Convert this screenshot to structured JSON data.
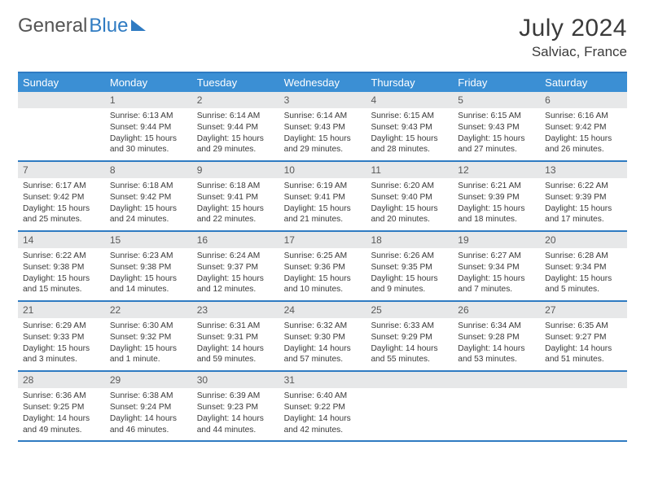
{
  "logo": {
    "text1": "General",
    "text2": "Blue"
  },
  "header": {
    "month": "July 2024",
    "location": "Salviac, France"
  },
  "styling": {
    "accent_color": "#3b8fd4",
    "border_color": "#2f7bc2",
    "daynum_bg": "#e7e8e9",
    "background": "#ffffff",
    "text_color": "#3a3a3a",
    "font_family": "Arial",
    "month_fontsize": 30,
    "location_fontsize": 17,
    "header_fontsize": 13,
    "body_fontsize": 10.2
  },
  "weekdays": [
    "Sunday",
    "Monday",
    "Tuesday",
    "Wednesday",
    "Thursday",
    "Friday",
    "Saturday"
  ],
  "weeks": [
    [
      {
        "n": "",
        "lines": []
      },
      {
        "n": "1",
        "lines": [
          "Sunrise: 6:13 AM",
          "Sunset: 9:44 PM",
          "Daylight: 15 hours and 30 minutes."
        ]
      },
      {
        "n": "2",
        "lines": [
          "Sunrise: 6:14 AM",
          "Sunset: 9:44 PM",
          "Daylight: 15 hours and 29 minutes."
        ]
      },
      {
        "n": "3",
        "lines": [
          "Sunrise: 6:14 AM",
          "Sunset: 9:43 PM",
          "Daylight: 15 hours and 29 minutes."
        ]
      },
      {
        "n": "4",
        "lines": [
          "Sunrise: 6:15 AM",
          "Sunset: 9:43 PM",
          "Daylight: 15 hours and 28 minutes."
        ]
      },
      {
        "n": "5",
        "lines": [
          "Sunrise: 6:15 AM",
          "Sunset: 9:43 PM",
          "Daylight: 15 hours and 27 minutes."
        ]
      },
      {
        "n": "6",
        "lines": [
          "Sunrise: 6:16 AM",
          "Sunset: 9:42 PM",
          "Daylight: 15 hours and 26 minutes."
        ]
      }
    ],
    [
      {
        "n": "7",
        "lines": [
          "Sunrise: 6:17 AM",
          "Sunset: 9:42 PM",
          "Daylight: 15 hours and 25 minutes."
        ]
      },
      {
        "n": "8",
        "lines": [
          "Sunrise: 6:18 AM",
          "Sunset: 9:42 PM",
          "Daylight: 15 hours and 24 minutes."
        ]
      },
      {
        "n": "9",
        "lines": [
          "Sunrise: 6:18 AM",
          "Sunset: 9:41 PM",
          "Daylight: 15 hours and 22 minutes."
        ]
      },
      {
        "n": "10",
        "lines": [
          "Sunrise: 6:19 AM",
          "Sunset: 9:41 PM",
          "Daylight: 15 hours and 21 minutes."
        ]
      },
      {
        "n": "11",
        "lines": [
          "Sunrise: 6:20 AM",
          "Sunset: 9:40 PM",
          "Daylight: 15 hours and 20 minutes."
        ]
      },
      {
        "n": "12",
        "lines": [
          "Sunrise: 6:21 AM",
          "Sunset: 9:39 PM",
          "Daylight: 15 hours and 18 minutes."
        ]
      },
      {
        "n": "13",
        "lines": [
          "Sunrise: 6:22 AM",
          "Sunset: 9:39 PM",
          "Daylight: 15 hours and 17 minutes."
        ]
      }
    ],
    [
      {
        "n": "14",
        "lines": [
          "Sunrise: 6:22 AM",
          "Sunset: 9:38 PM",
          "Daylight: 15 hours and 15 minutes."
        ]
      },
      {
        "n": "15",
        "lines": [
          "Sunrise: 6:23 AM",
          "Sunset: 9:38 PM",
          "Daylight: 15 hours and 14 minutes."
        ]
      },
      {
        "n": "16",
        "lines": [
          "Sunrise: 6:24 AM",
          "Sunset: 9:37 PM",
          "Daylight: 15 hours and 12 minutes."
        ]
      },
      {
        "n": "17",
        "lines": [
          "Sunrise: 6:25 AM",
          "Sunset: 9:36 PM",
          "Daylight: 15 hours and 10 minutes."
        ]
      },
      {
        "n": "18",
        "lines": [
          "Sunrise: 6:26 AM",
          "Sunset: 9:35 PM",
          "Daylight: 15 hours and 9 minutes."
        ]
      },
      {
        "n": "19",
        "lines": [
          "Sunrise: 6:27 AM",
          "Sunset: 9:34 PM",
          "Daylight: 15 hours and 7 minutes."
        ]
      },
      {
        "n": "20",
        "lines": [
          "Sunrise: 6:28 AM",
          "Sunset: 9:34 PM",
          "Daylight: 15 hours and 5 minutes."
        ]
      }
    ],
    [
      {
        "n": "21",
        "lines": [
          "Sunrise: 6:29 AM",
          "Sunset: 9:33 PM",
          "Daylight: 15 hours and 3 minutes."
        ]
      },
      {
        "n": "22",
        "lines": [
          "Sunrise: 6:30 AM",
          "Sunset: 9:32 PM",
          "Daylight: 15 hours and 1 minute."
        ]
      },
      {
        "n": "23",
        "lines": [
          "Sunrise: 6:31 AM",
          "Sunset: 9:31 PM",
          "Daylight: 14 hours and 59 minutes."
        ]
      },
      {
        "n": "24",
        "lines": [
          "Sunrise: 6:32 AM",
          "Sunset: 9:30 PM",
          "Daylight: 14 hours and 57 minutes."
        ]
      },
      {
        "n": "25",
        "lines": [
          "Sunrise: 6:33 AM",
          "Sunset: 9:29 PM",
          "Daylight: 14 hours and 55 minutes."
        ]
      },
      {
        "n": "26",
        "lines": [
          "Sunrise: 6:34 AM",
          "Sunset: 9:28 PM",
          "Daylight: 14 hours and 53 minutes."
        ]
      },
      {
        "n": "27",
        "lines": [
          "Sunrise: 6:35 AM",
          "Sunset: 9:27 PM",
          "Daylight: 14 hours and 51 minutes."
        ]
      }
    ],
    [
      {
        "n": "28",
        "lines": [
          "Sunrise: 6:36 AM",
          "Sunset: 9:25 PM",
          "Daylight: 14 hours and 49 minutes."
        ]
      },
      {
        "n": "29",
        "lines": [
          "Sunrise: 6:38 AM",
          "Sunset: 9:24 PM",
          "Daylight: 14 hours and 46 minutes."
        ]
      },
      {
        "n": "30",
        "lines": [
          "Sunrise: 6:39 AM",
          "Sunset: 9:23 PM",
          "Daylight: 14 hours and 44 minutes."
        ]
      },
      {
        "n": "31",
        "lines": [
          "Sunrise: 6:40 AM",
          "Sunset: 9:22 PM",
          "Daylight: 14 hours and 42 minutes."
        ]
      },
      {
        "n": "",
        "lines": []
      },
      {
        "n": "",
        "lines": []
      },
      {
        "n": "",
        "lines": []
      }
    ]
  ]
}
